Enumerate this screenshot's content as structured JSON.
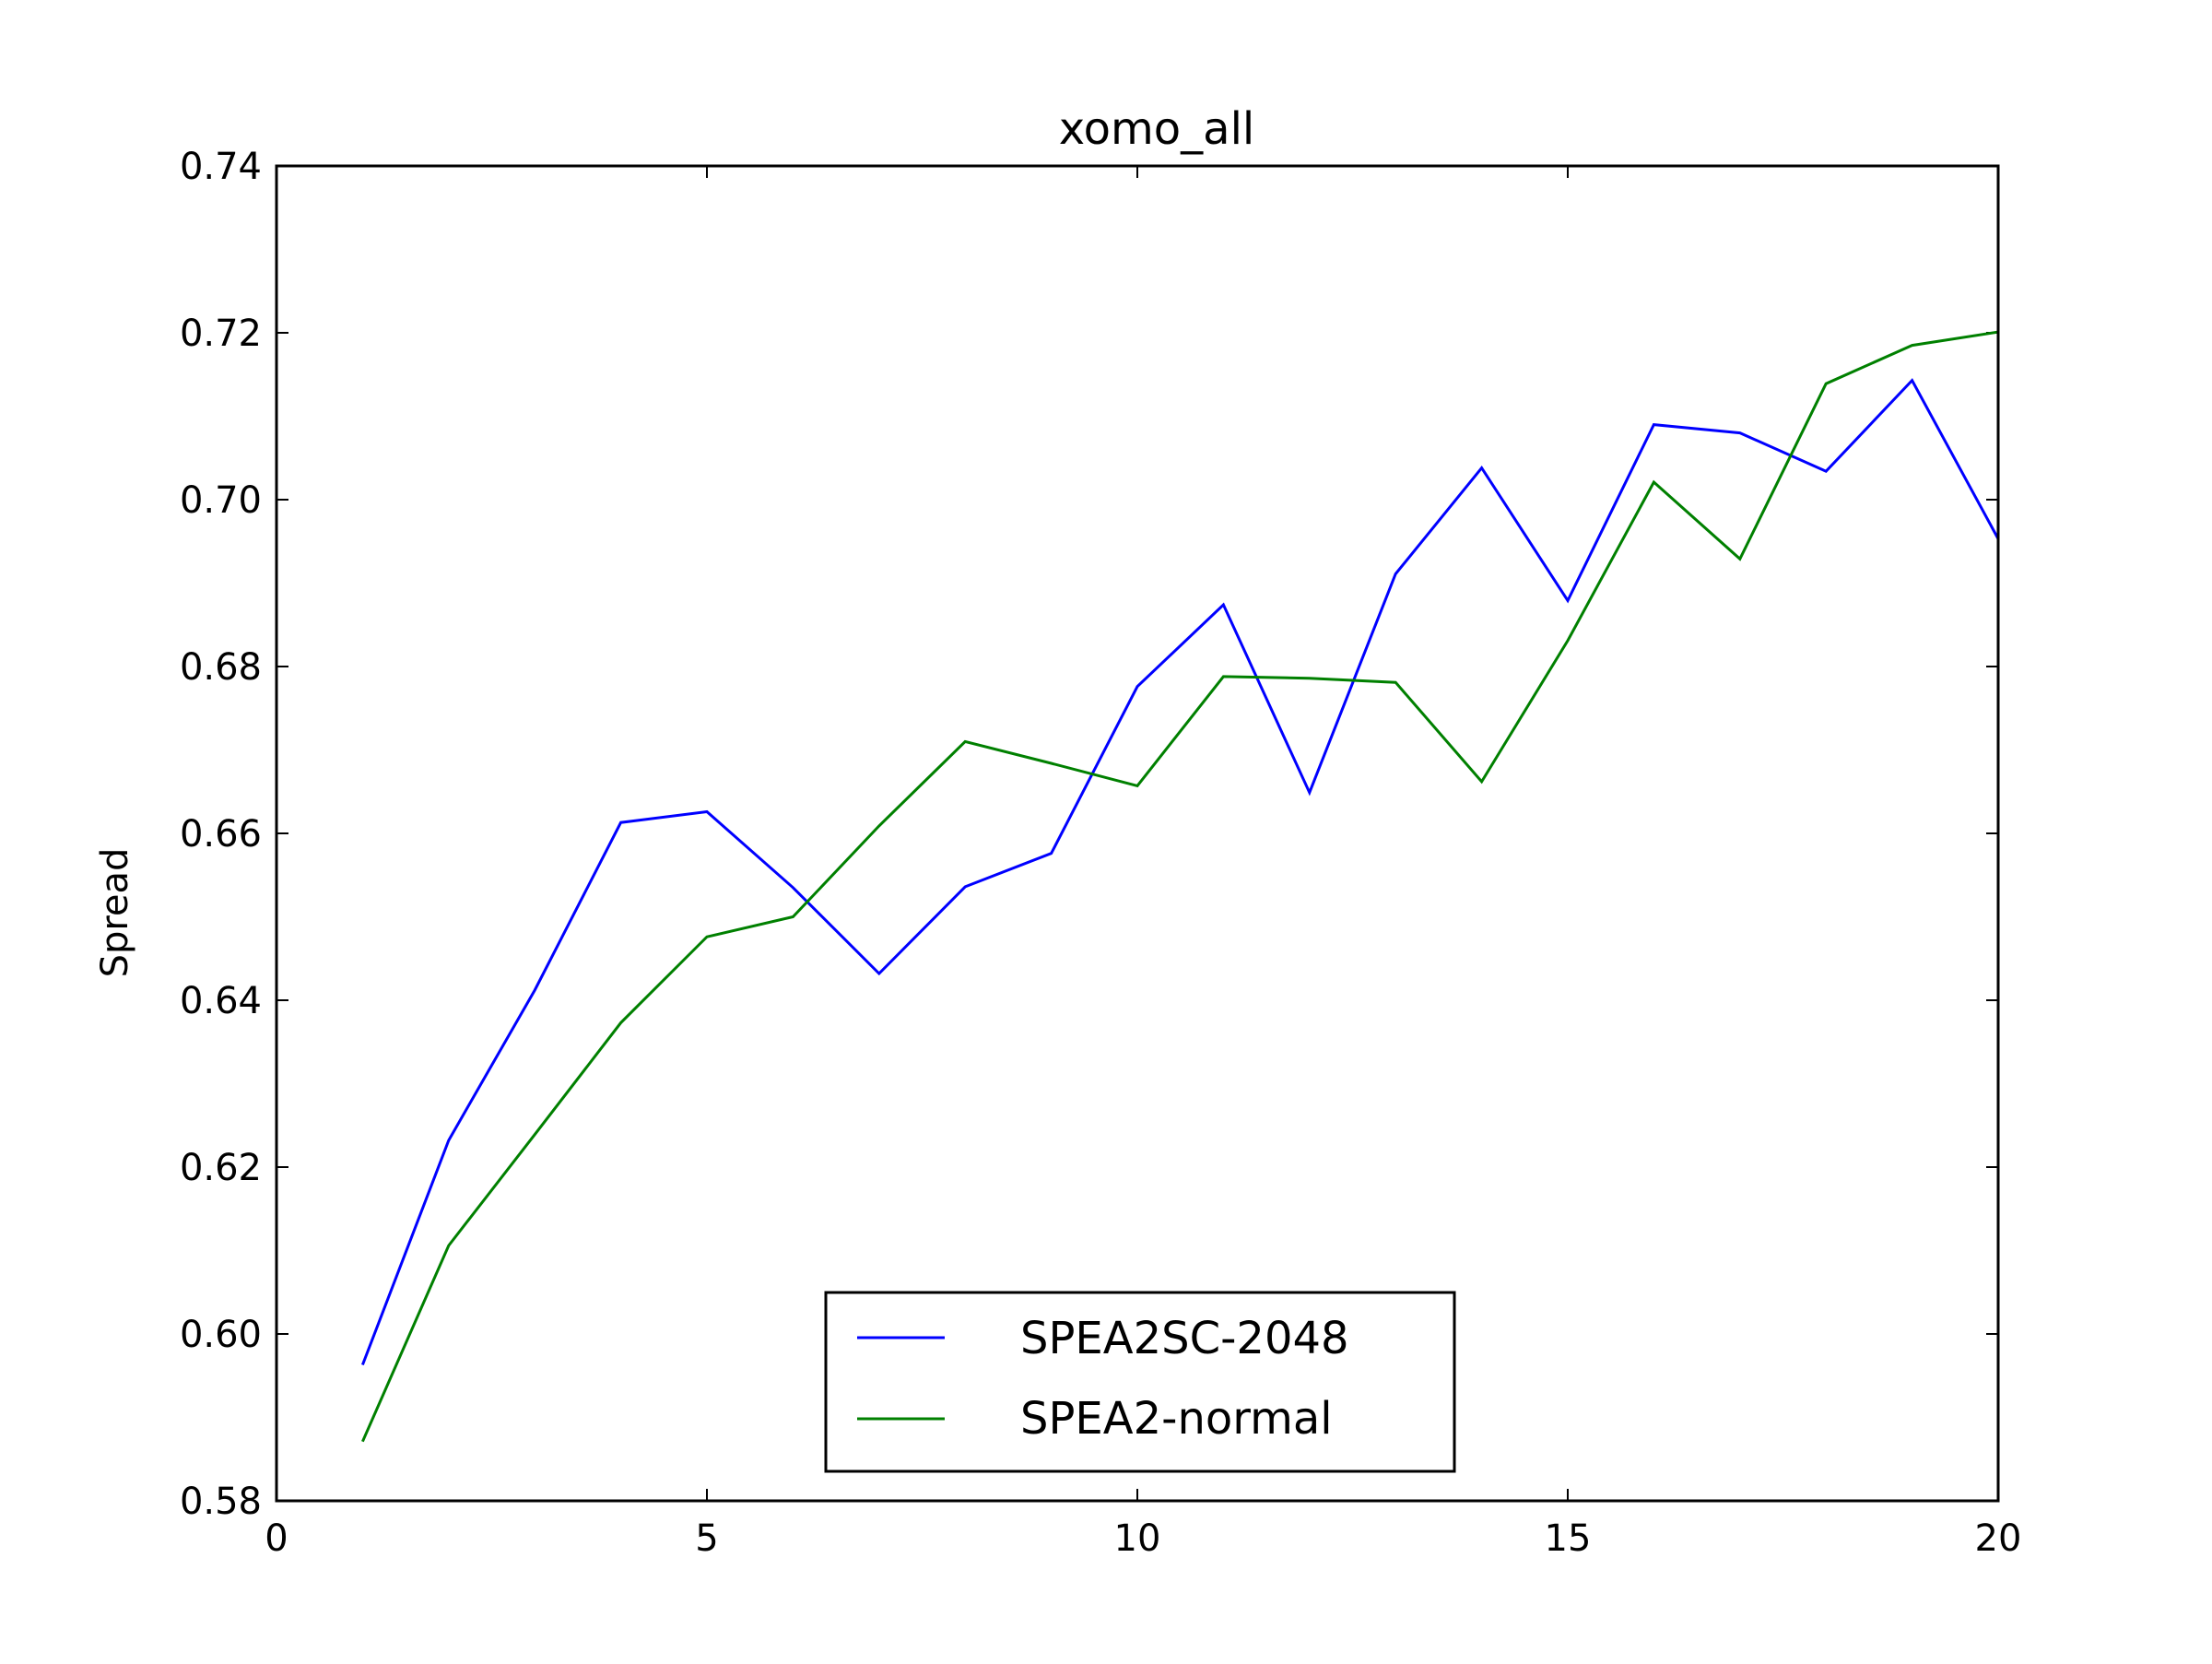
{
  "chart_data": {
    "type": "line",
    "title": "xomo_all",
    "xlabel": "",
    "ylabel": "Spread",
    "xlim": [
      0,
      20
    ],
    "ylim": [
      0.58,
      0.74
    ],
    "xticks": [
      0,
      5,
      10,
      15,
      20
    ],
    "yticks": [
      0.58,
      0.6,
      0.62,
      0.64,
      0.66,
      0.68,
      0.7,
      0.72,
      0.74
    ],
    "xtick_labels": [
      "0",
      "5",
      "10",
      "15",
      "20"
    ],
    "ytick_labels": [
      "0.58",
      "0.60",
      "0.62",
      "0.64",
      "0.66",
      "0.68",
      "0.70",
      "0.72",
      "0.74"
    ],
    "grid": false,
    "legend_position": "bottom-center",
    "x": [
      1,
      2,
      3,
      4,
      5,
      6,
      7,
      8,
      9,
      10,
      11,
      12,
      13,
      14,
      15,
      16,
      17,
      18,
      19,
      20
    ],
    "series": [
      {
        "name": "SPEA2SC-2048",
        "color": "#0000ff",
        "values": [
          0.5963,
          0.6232,
          0.6412,
          0.6613,
          0.6626,
          0.6535,
          0.6432,
          0.6536,
          0.6576,
          0.6776,
          0.6874,
          0.6649,
          0.6911,
          0.7038,
          0.6879,
          0.709,
          0.708,
          0.7034,
          0.7143,
          0.6953
        ]
      },
      {
        "name": "SPEA2-normal",
        "color": "#008000",
        "values": [
          0.5871,
          0.6106,
          0.6239,
          0.6373,
          0.6476,
          0.65,
          0.6609,
          0.671,
          0.6684,
          0.6657,
          0.6788,
          0.6786,
          0.6781,
          0.6662,
          0.6831,
          0.7021,
          0.6929,
          0.7139,
          0.7185,
          0.7201
        ]
      }
    ]
  }
}
